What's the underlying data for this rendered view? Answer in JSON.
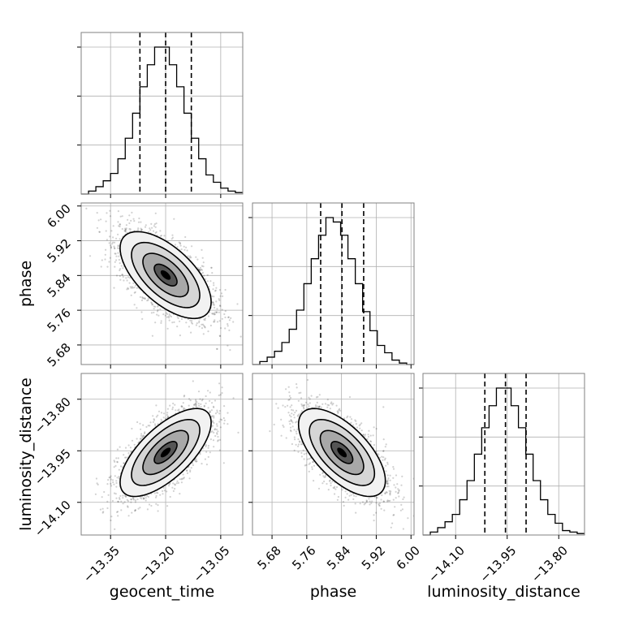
{
  "chart_data": {
    "type": "corner",
    "parameters": [
      "geocent_time",
      "phase",
      "luminosity_distance"
    ],
    "axis_labels": {
      "geocent_time": "geocent_time",
      "phase": "phase",
      "luminosity_distance": "luminosity_distance"
    },
    "ranges": {
      "geocent_time": [
        -13.43,
        -12.99
      ],
      "phase": [
        5.635,
        6.007
      ],
      "luminosity_distance": [
        -14.195,
        -13.725
      ]
    },
    "ticks": {
      "geocent_time": {
        "values": [
          -13.35,
          -13.2,
          -13.05
        ],
        "labels": [
          "−13.35",
          "−13.20",
          "−13.05"
        ]
      },
      "phase": {
        "values": [
          5.68,
          5.76,
          5.84,
          5.92,
          6.0
        ],
        "labels": [
          "5.68",
          "5.76",
          "5.84",
          "5.92",
          "6.00"
        ]
      },
      "luminosity_distance": {
        "values": [
          -14.1,
          -13.95,
          -13.8
        ],
        "labels": [
          "−14.10",
          "−13.95",
          "−13.80"
        ]
      }
    },
    "quantiles": {
      "geocent_time": [
        -13.27,
        -13.2,
        -13.13
      ],
      "phase": [
        5.792,
        5.841,
        5.891
      ],
      "luminosity_distance": [
        -14.015,
        -13.955,
        -13.895
      ]
    },
    "histograms": {
      "geocent_time": [
        0,
        2,
        5,
        9,
        14,
        24,
        38,
        55,
        73,
        88,
        100,
        100,
        88,
        73,
        55,
        38,
        24,
        13,
        8,
        4,
        2,
        1
      ],
      "phase": [
        0,
        2,
        5,
        9,
        15,
        24,
        37,
        55,
        72,
        88,
        100,
        97,
        88,
        72,
        55,
        36,
        23,
        13,
        8,
        3,
        1,
        0
      ],
      "luminosity_distance": [
        0,
        2,
        5,
        9,
        14,
        24,
        37,
        55,
        73,
        88,
        100,
        100,
        88,
        73,
        55,
        37,
        24,
        14,
        8,
        3,
        2,
        1
      ]
    },
    "joint": [
      {
        "x": "geocent_time",
        "y": "phase",
        "mean": [
          -13.2,
          5.841
        ],
        "sd": [
          0.062,
          0.05
        ],
        "rho": -0.62
      },
      {
        "x": "geocent_time",
        "y": "luminosity_distance",
        "mean": [
          -13.2,
          -13.955
        ],
        "sd": [
          0.062,
          0.064
        ],
        "rho": 0.68
      },
      {
        "x": "phase",
        "y": "luminosity_distance",
        "mean": [
          5.841,
          -13.955
        ],
        "sd": [
          0.05,
          0.064
        ],
        "rho": -0.64
      }
    ],
    "contour_levels_sigma": [
      0.5,
      1.0,
      1.5,
      2.0
    ],
    "grid": true
  }
}
